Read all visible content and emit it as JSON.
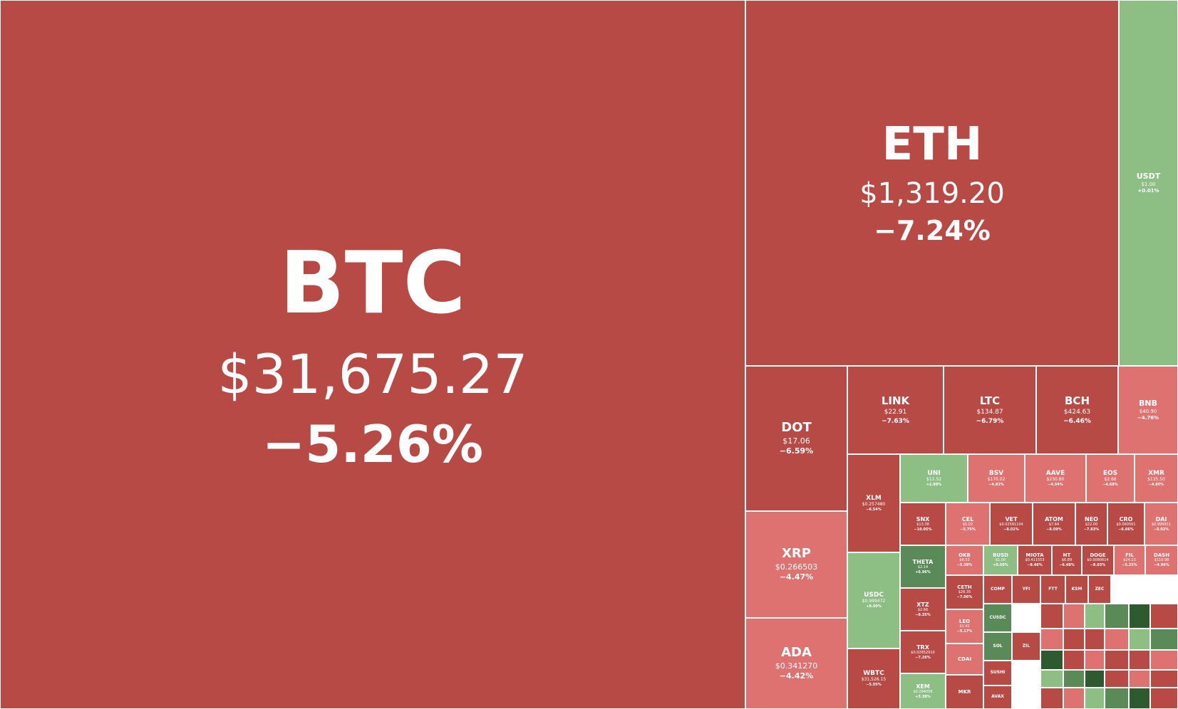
{
  "colors": {
    "strong_red": "#b84a46",
    "light_red": "#de7270",
    "light_green": "#8dbf85",
    "dark_green": "#5a8a57",
    "very_dark_green": "#2d5a2e",
    "border": "#ffffff"
  },
  "tiles": [
    {
      "symbol": "BTC",
      "price": "$31,675.27",
      "change": "−5.26%",
      "color": "strong_red"
    },
    {
      "symbol": "ETH",
      "price": "$1,319.20",
      "change": "−7.24%",
      "color": "strong_red"
    },
    {
      "symbol": "USDT",
      "price": "$1.00",
      "change": "+0.01%",
      "color": "light_green"
    },
    {
      "symbol": "DOT",
      "price": "$17.06",
      "change": "−6.59%",
      "color": "strong_red"
    },
    {
      "symbol": "LINK",
      "price": "$22.91",
      "change": "−7.63%",
      "color": "strong_red"
    },
    {
      "symbol": "LTC",
      "price": "$134.87",
      "change": "−6.79%",
      "color": "strong_red"
    },
    {
      "symbol": "BCH",
      "price": "$424.63",
      "change": "−6.46%",
      "color": "strong_red"
    },
    {
      "symbol": "BNB",
      "price": "$40.90",
      "change": "−4.76%",
      "color": "light_red"
    },
    {
      "symbol": "XRP",
      "price": "$0.266503",
      "change": "−4.47%",
      "color": "light_red"
    },
    {
      "symbol": "ADA",
      "price": "$0.341270",
      "change": "−4.42%",
      "color": "light_red"
    },
    {
      "symbol": "XLM",
      "price": "$0.257480",
      "change": "−6.54%",
      "color": "strong_red"
    },
    {
      "symbol": "USDC",
      "price": "$0.999472",
      "change": "+0.00%",
      "color": "light_green"
    },
    {
      "symbol": "WBTC",
      "price": "$31,526.15",
      "change": "−5.05%",
      "color": "strong_red"
    },
    {
      "symbol": "UNI",
      "price": "$12.52",
      "change": "+2.88%",
      "color": "light_green"
    },
    {
      "symbol": "BSV",
      "price": "$170.02",
      "change": "−4.83%",
      "color": "light_red"
    },
    {
      "symbol": "AAVE",
      "price": "$230.80",
      "change": "−4.04%",
      "color": "light_red"
    },
    {
      "symbol": "EOS",
      "price": "$2.66",
      "change": "−4.68%",
      "color": "light_red"
    },
    {
      "symbol": "XMR",
      "price": "$135.50",
      "change": "−4.80%",
      "color": "light_red"
    },
    {
      "symbol": "SNX",
      "price": "$13.38",
      "change": "−10.05%",
      "color": "strong_red"
    },
    {
      "symbol": "CEL",
      "price": "$5.02",
      "change": "−5.75%",
      "color": "light_red"
    },
    {
      "symbol": "VET",
      "price": "$0.02591104",
      "change": "−8.01%",
      "color": "strong_red"
    },
    {
      "symbol": "ATOM",
      "price": "$7.64",
      "change": "−8.09%",
      "color": "strong_red"
    },
    {
      "symbol": "NEO",
      "price": "$22.00",
      "change": "−7.83%",
      "color": "strong_red"
    },
    {
      "symbol": "CRO",
      "price": "$0.060561",
      "change": "−6.66%",
      "color": "strong_red"
    },
    {
      "symbol": "DAI",
      "price": "$0.999911",
      "change": "−0.02%",
      "color": "light_red"
    },
    {
      "symbol": "THETA",
      "price": "$2.14",
      "change": "+6.96%",
      "color": "dark_green"
    },
    {
      "symbol": "OKB",
      "price": "$6.53",
      "change": "−5.39%",
      "color": "light_red"
    },
    {
      "symbol": "BUSD",
      "price": "$1.00",
      "change": "+0.09%",
      "color": "light_green"
    },
    {
      "symbol": "MIOTA",
      "price": "$0.411553",
      "change": "−8.46%",
      "color": "strong_red"
    },
    {
      "symbol": "HT",
      "price": "$6.89",
      "change": "−6.48%",
      "color": "strong_red"
    },
    {
      "symbol": "DOGE",
      "price": "$0.0080614",
      "change": "−8.03%",
      "color": "strong_red"
    },
    {
      "symbol": "FIL",
      "price": "$24.13",
      "change": "−5.25%",
      "color": "light_red"
    },
    {
      "symbol": "DASH",
      "price": "$110.98",
      "change": "−4.96%",
      "color": "light_red"
    },
    {
      "symbol": "XTZ",
      "price": "$2.66",
      "change": "−8.35%",
      "color": "strong_red"
    },
    {
      "symbol": "CETH",
      "price": "$26.35",
      "change": "−7.06%",
      "color": "strong_red"
    },
    {
      "symbol": "LEO",
      "price": "$1.42",
      "change": "−5.17%",
      "color": "light_red"
    },
    {
      "symbol": "TRX",
      "price": "$0.02652910",
      "change": "−7.26%",
      "color": "strong_red"
    },
    {
      "symbol": "COMP",
      "price": "",
      "change": "",
      "color": "strong_red"
    },
    {
      "symbol": "YFI",
      "price": "",
      "change": "",
      "color": "strong_red"
    },
    {
      "symbol": "FTT",
      "price": "",
      "change": "",
      "color": "strong_red"
    },
    {
      "symbol": "KSM",
      "price": "",
      "change": "",
      "color": "strong_red"
    },
    {
      "symbol": "ZEC",
      "price": "",
      "change": "",
      "color": "strong_red"
    },
    {
      "symbol": "CDAI",
      "price": "",
      "change": "",
      "color": "light_red"
    },
    {
      "symbol": "CUSDC",
      "price": "",
      "change": "",
      "color": "dark_green"
    },
    {
      "symbol": "XEM",
      "price": "$0.284058",
      "change": "+3.38%",
      "color": "light_green"
    },
    {
      "symbol": "MKR",
      "price": "",
      "change": "",
      "color": "strong_red"
    },
    {
      "symbol": "SOL",
      "price": "",
      "change": "",
      "color": "dark_green"
    },
    {
      "symbol": "SUSHI",
      "price": "",
      "change": "",
      "color": "strong_red"
    },
    {
      "symbol": "ZIL",
      "price": "",
      "change": "",
      "color": "strong_red"
    },
    {
      "symbol": "AVAX",
      "price": "",
      "change": "",
      "color": "strong_red"
    }
  ]
}
